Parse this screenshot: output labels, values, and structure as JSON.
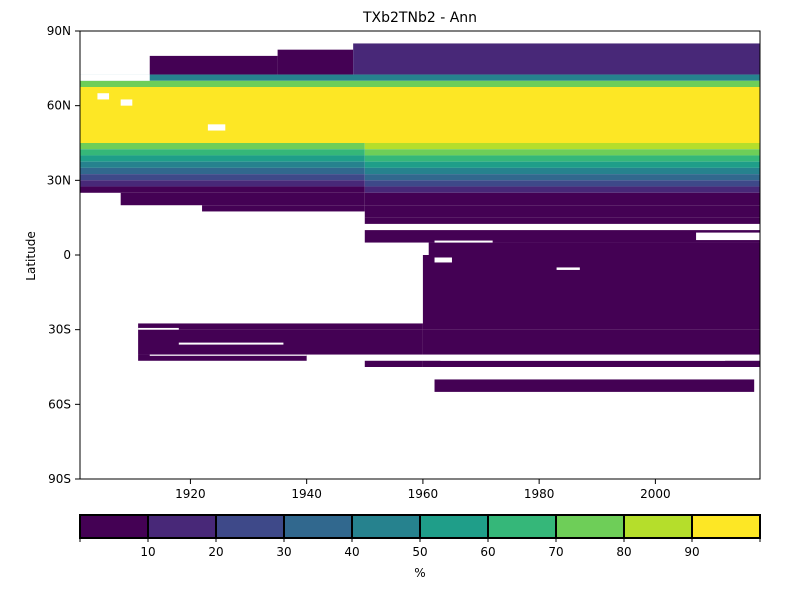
{
  "chart_data": {
    "type": "heatmap",
    "title": "TXb2TNb2 - Ann",
    "xlabel": "",
    "ylabel": "Latitude",
    "xlim": [
      1901,
      2018
    ],
    "ylim": [
      -90,
      90
    ],
    "x_ticks": [
      {
        "value": 1920,
        "label": "1920"
      },
      {
        "value": 1940,
        "label": "1940"
      },
      {
        "value": 1960,
        "label": "1960"
      },
      {
        "value": 1980,
        "label": "1980"
      },
      {
        "value": 2000,
        "label": "2000"
      }
    ],
    "y_ticks": [
      {
        "value": 90,
        "label": "90N"
      },
      {
        "value": 60,
        "label": "60N"
      },
      {
        "value": 30,
        "label": "30N"
      },
      {
        "value": 0,
        "label": "0"
      },
      {
        "value": -30,
        "label": "30S"
      },
      {
        "value": -60,
        "label": "60S"
      },
      {
        "value": -90,
        "label": "90S"
      }
    ],
    "colorbar": {
      "label": "%",
      "range": [
        0,
        100
      ],
      "boundaries": [
        0,
        10,
        20,
        30,
        40,
        50,
        60,
        70,
        80,
        90,
        100
      ],
      "tick_labels": [
        "10",
        "20",
        "30",
        "40",
        "50",
        "60",
        "70",
        "80",
        "90"
      ],
      "colors": [
        "#440154",
        "#482878",
        "#3e4989",
        "#31688e",
        "#26828e",
        "#1f9e89",
        "#35b779",
        "#6ece58",
        "#b5de2b",
        "#fde725"
      ]
    },
    "cells": [
      {
        "x0": 1913,
        "x1": 1935,
        "y0": 72.5,
        "y1": 80,
        "value": 5
      },
      {
        "x0": 1935,
        "x1": 1948,
        "y0": 72.5,
        "y1": 82.5,
        "value": 5
      },
      {
        "x0": 1948,
        "x1": 2018,
        "y0": 72.5,
        "y1": 85,
        "value": 15
      },
      {
        "x0": 1901,
        "x1": 2018,
        "y0": 70,
        "y1": 72.5,
        "value": 45
      },
      {
        "x0": 1901,
        "x1": 2018,
        "y0": 67.5,
        "y1": 70,
        "value": 75
      },
      {
        "x0": 1901,
        "x1": 2018,
        "y0": 45,
        "y1": 67.5,
        "value": 95
      },
      {
        "x0": 1901,
        "x1": 1950,
        "y0": 42.5,
        "y1": 45,
        "value": 75
      },
      {
        "x0": 1901,
        "x1": 1950,
        "y0": 40,
        "y1": 42.5,
        "value": 65
      },
      {
        "x0": 1901,
        "x1": 1950,
        "y0": 37.5,
        "y1": 40,
        "value": 55
      },
      {
        "x0": 1901,
        "x1": 1950,
        "y0": 35,
        "y1": 37.5,
        "value": 45
      },
      {
        "x0": 1901,
        "x1": 1950,
        "y0": 32.5,
        "y1": 35,
        "value": 35
      },
      {
        "x0": 1901,
        "x1": 1950,
        "y0": 30,
        "y1": 32.5,
        "value": 25
      },
      {
        "x0": 1901,
        "x1": 1950,
        "y0": 27.5,
        "y1": 30,
        "value": 15
      },
      {
        "x0": 1901,
        "x1": 1950,
        "y0": 25,
        "y1": 27.5,
        "value": 5
      },
      {
        "x0": 1908,
        "x1": 1950,
        "y0": 20,
        "y1": 25,
        "value": 5
      },
      {
        "x0": 1922,
        "x1": 1950,
        "y0": 17.5,
        "y1": 20,
        "value": 5
      },
      {
        "x0": 1950,
        "x1": 2018,
        "y0": 42.5,
        "y1": 45,
        "value": 85
      },
      {
        "x0": 1950,
        "x1": 2018,
        "y0": 40,
        "y1": 42.5,
        "value": 75
      },
      {
        "x0": 1950,
        "x1": 2018,
        "y0": 37.5,
        "y1": 40,
        "value": 65
      },
      {
        "x0": 1950,
        "x1": 2018,
        "y0": 35,
        "y1": 37.5,
        "value": 55
      },
      {
        "x0": 1950,
        "x1": 2018,
        "y0": 32.5,
        "y1": 35,
        "value": 45
      },
      {
        "x0": 1950,
        "x1": 2018,
        "y0": 30,
        "y1": 32.5,
        "value": 35
      },
      {
        "x0": 1950,
        "x1": 2018,
        "y0": 27.5,
        "y1": 30,
        "value": 25
      },
      {
        "x0": 1950,
        "x1": 2018,
        "y0": 25,
        "y1": 27.5,
        "value": 15
      },
      {
        "x0": 1950,
        "x1": 2018,
        "y0": 20,
        "y1": 25,
        "value": 5
      },
      {
        "x0": 1950,
        "x1": 2018,
        "y0": 15,
        "y1": 20,
        "value": 5
      },
      {
        "x0": 1950,
        "x1": 2018,
        "y0": 12.5,
        "y1": 15,
        "value": 5
      },
      {
        "x0": 1950,
        "x1": 2018,
        "y0": 5,
        "y1": 10,
        "value": 5
      },
      {
        "x0": 1961,
        "x1": 2018,
        "y0": 0,
        "y1": 5,
        "value": 5
      },
      {
        "x0": 1960,
        "x1": 2018,
        "y0": -30,
        "y1": 0,
        "value": 5
      },
      {
        "x0": 1960,
        "x1": 2018,
        "y0": -40,
        "y1": -30,
        "value": 5
      },
      {
        "x0": 1960,
        "x1": 2018,
        "y0": -45,
        "y1": -42.5,
        "value": 5
      },
      {
        "x0": 1962,
        "x1": 2017,
        "y0": -55,
        "y1": -50,
        "value": 5
      },
      {
        "x0": 1911,
        "x1": 1960,
        "y0": -30,
        "y1": -27.5,
        "value": 5
      },
      {
        "x0": 1911,
        "x1": 1960,
        "y0": -40,
        "y1": -30,
        "value": 5
      },
      {
        "x0": 1911,
        "x1": 1940,
        "y0": -42.5,
        "y1": -40,
        "value": 5
      },
      {
        "x0": 1950,
        "x1": 1960,
        "y0": -45,
        "y1": -42.5,
        "value": 5
      }
    ],
    "gaps": [
      {
        "x0": 1901,
        "x1": 1913,
        "y0": 70,
        "y1": 72.5
      },
      {
        "x0": 1904,
        "x1": 1906,
        "y0": 62.5,
        "y1": 65
      },
      {
        "x0": 1908,
        "x1": 1910,
        "y0": 60,
        "y1": 62.5
      },
      {
        "x0": 1923,
        "x1": 1926,
        "y0": 50,
        "y1": 52.5
      },
      {
        "x0": 1962,
        "x1": 1972,
        "y0": 5,
        "y1": 5.8
      },
      {
        "x0": 1962,
        "x1": 1965,
        "y0": -3,
        "y1": -1
      },
      {
        "x0": 1983,
        "x1": 1987,
        "y0": -6,
        "y1": -5
      },
      {
        "x0": 2007,
        "x1": 2018,
        "y0": 6,
        "y1": 9
      },
      {
        "x0": 1963,
        "x1": 2012,
        "y0": -42.5,
        "y1": -41.8
      },
      {
        "x0": 1913,
        "x1": 1940,
        "y0": -40.5,
        "y1": -40
      },
      {
        "x0": 1918,
        "x1": 1936,
        "y0": -36,
        "y1": -35.2
      },
      {
        "x0": 1911,
        "x1": 1918,
        "y0": -30,
        "y1": -29.3
      }
    ]
  }
}
